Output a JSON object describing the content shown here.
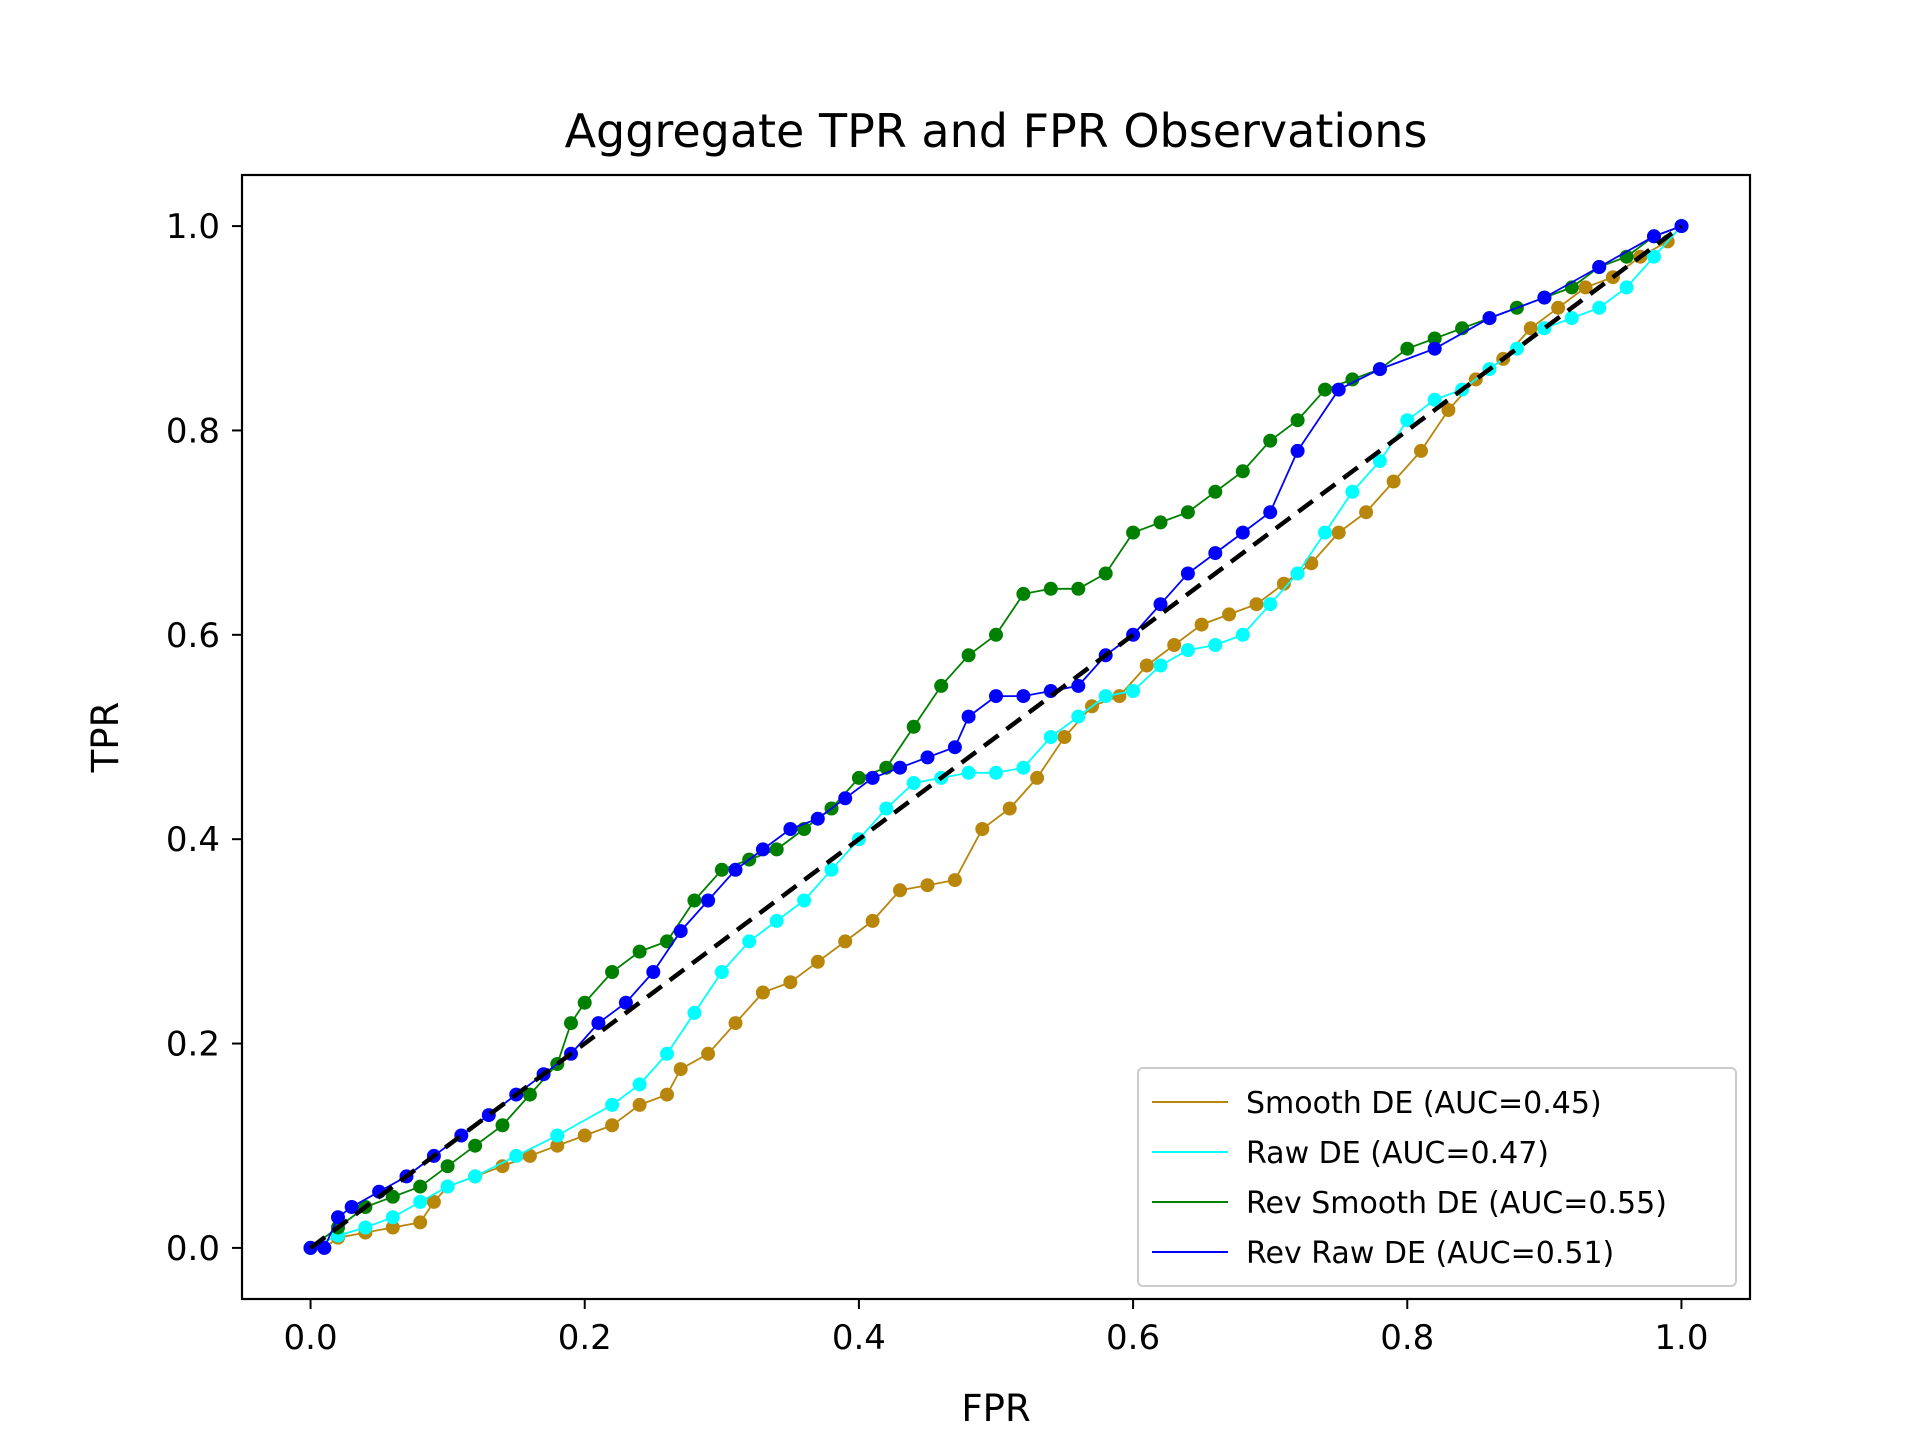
{
  "chart_data": {
    "type": "line",
    "title": "Aggregate TPR and FPR Observations",
    "xlabel": "FPR",
    "ylabel": "TPR",
    "xlim": [
      -0.05,
      1.05
    ],
    "ylim": [
      -0.05,
      1.05
    ],
    "xticks": [
      "0.0",
      "0.2",
      "0.4",
      "0.6",
      "0.8",
      "1.0"
    ],
    "yticks": [
      "0.0",
      "0.2",
      "0.4",
      "0.6",
      "0.8",
      "1.0"
    ],
    "grid": false,
    "legend_position": "lower-right",
    "reference_line": {
      "x": [
        0,
        1
      ],
      "y": [
        0,
        1
      ],
      "color": "#000000",
      "style": "dashed"
    },
    "series": [
      {
        "name": "Smooth DE (AUC=0.45)",
        "color": "#b8860b",
        "x": [
          0,
          0.01,
          0.02,
          0.04,
          0.06,
          0.08,
          0.09,
          0.1,
          0.12,
          0.14,
          0.16,
          0.18,
          0.2,
          0.22,
          0.24,
          0.26,
          0.27,
          0.29,
          0.31,
          0.33,
          0.35,
          0.37,
          0.39,
          0.41,
          0.43,
          0.45,
          0.47,
          0.49,
          0.51,
          0.53,
          0.55,
          0.57,
          0.59,
          0.61,
          0.63,
          0.65,
          0.67,
          0.69,
          0.71,
          0.73,
          0.75,
          0.77,
          0.79,
          0.81,
          0.83,
          0.85,
          0.87,
          0.89,
          0.91,
          0.93,
          0.95,
          0.97,
          0.99,
          1.0
        ],
        "y": [
          0,
          0.0,
          0.01,
          0.015,
          0.02,
          0.025,
          0.045,
          0.06,
          0.07,
          0.08,
          0.09,
          0.1,
          0.11,
          0.12,
          0.14,
          0.15,
          0.175,
          0.19,
          0.22,
          0.25,
          0.26,
          0.28,
          0.3,
          0.32,
          0.35,
          0.355,
          0.36,
          0.41,
          0.43,
          0.46,
          0.5,
          0.53,
          0.54,
          0.57,
          0.59,
          0.61,
          0.62,
          0.63,
          0.65,
          0.67,
          0.7,
          0.72,
          0.75,
          0.78,
          0.82,
          0.85,
          0.87,
          0.9,
          0.92,
          0.94,
          0.95,
          0.97,
          0.985,
          1.0
        ]
      },
      {
        "name": "Raw DE (AUC=0.47)",
        "color": "#00ffff",
        "x": [
          0,
          0.02,
          0.04,
          0.06,
          0.08,
          0.1,
          0.12,
          0.15,
          0.18,
          0.22,
          0.24,
          0.26,
          0.28,
          0.3,
          0.32,
          0.34,
          0.36,
          0.38,
          0.4,
          0.42,
          0.44,
          0.46,
          0.48,
          0.5,
          0.52,
          0.54,
          0.56,
          0.58,
          0.6,
          0.62,
          0.64,
          0.66,
          0.68,
          0.7,
          0.72,
          0.74,
          0.76,
          0.78,
          0.8,
          0.82,
          0.84,
          0.86,
          0.88,
          0.9,
          0.92,
          0.94,
          0.96,
          0.98,
          1.0
        ],
        "y": [
          0,
          0.012,
          0.02,
          0.03,
          0.045,
          0.06,
          0.07,
          0.09,
          0.11,
          0.14,
          0.16,
          0.19,
          0.23,
          0.27,
          0.3,
          0.32,
          0.34,
          0.37,
          0.4,
          0.43,
          0.455,
          0.46,
          0.465,
          0.465,
          0.47,
          0.5,
          0.52,
          0.54,
          0.545,
          0.57,
          0.585,
          0.59,
          0.6,
          0.63,
          0.66,
          0.7,
          0.74,
          0.77,
          0.81,
          0.83,
          0.84,
          0.86,
          0.88,
          0.9,
          0.91,
          0.92,
          0.94,
          0.97,
          1.0
        ]
      },
      {
        "name": "Rev Smooth DE (AUC=0.55)",
        "color": "#008000",
        "x": [
          0,
          0.02,
          0.04,
          0.06,
          0.08,
          0.1,
          0.12,
          0.14,
          0.16,
          0.18,
          0.19,
          0.2,
          0.22,
          0.24,
          0.26,
          0.28,
          0.3,
          0.32,
          0.34,
          0.36,
          0.38,
          0.4,
          0.42,
          0.44,
          0.46,
          0.48,
          0.5,
          0.52,
          0.54,
          0.56,
          0.58,
          0.6,
          0.62,
          0.64,
          0.66,
          0.68,
          0.7,
          0.72,
          0.74,
          0.76,
          0.78,
          0.8,
          0.82,
          0.84,
          0.86,
          0.88,
          0.9,
          0.92,
          0.94,
          0.96,
          0.98,
          1.0
        ],
        "y": [
          0,
          0.02,
          0.04,
          0.05,
          0.06,
          0.08,
          0.1,
          0.12,
          0.15,
          0.18,
          0.22,
          0.24,
          0.27,
          0.29,
          0.3,
          0.34,
          0.37,
          0.38,
          0.39,
          0.41,
          0.43,
          0.46,
          0.47,
          0.51,
          0.55,
          0.58,
          0.6,
          0.64,
          0.645,
          0.645,
          0.66,
          0.7,
          0.71,
          0.72,
          0.74,
          0.76,
          0.79,
          0.81,
          0.84,
          0.85,
          0.86,
          0.88,
          0.89,
          0.9,
          0.91,
          0.92,
          0.93,
          0.94,
          0.96,
          0.97,
          0.99,
          1.0
        ]
      },
      {
        "name": "Rev Raw DE (AUC=0.51)",
        "color": "#0000ff",
        "x": [
          0,
          0.01,
          0.02,
          0.03,
          0.05,
          0.07,
          0.09,
          0.11,
          0.13,
          0.15,
          0.17,
          0.19,
          0.21,
          0.23,
          0.25,
          0.27,
          0.29,
          0.31,
          0.33,
          0.35,
          0.37,
          0.39,
          0.41,
          0.43,
          0.45,
          0.47,
          0.48,
          0.5,
          0.52,
          0.54,
          0.56,
          0.58,
          0.6,
          0.62,
          0.64,
          0.66,
          0.68,
          0.7,
          0.72,
          0.75,
          0.78,
          0.82,
          0.86,
          0.9,
          0.94,
          0.98,
          1.0
        ],
        "y": [
          0,
          0.0,
          0.03,
          0.04,
          0.055,
          0.07,
          0.09,
          0.11,
          0.13,
          0.15,
          0.17,
          0.19,
          0.22,
          0.24,
          0.27,
          0.31,
          0.34,
          0.37,
          0.39,
          0.41,
          0.42,
          0.44,
          0.46,
          0.47,
          0.48,
          0.49,
          0.52,
          0.54,
          0.54,
          0.545,
          0.55,
          0.58,
          0.6,
          0.63,
          0.66,
          0.68,
          0.7,
          0.72,
          0.78,
          0.84,
          0.86,
          0.88,
          0.91,
          0.93,
          0.96,
          0.99,
          1.0
        ]
      }
    ]
  }
}
